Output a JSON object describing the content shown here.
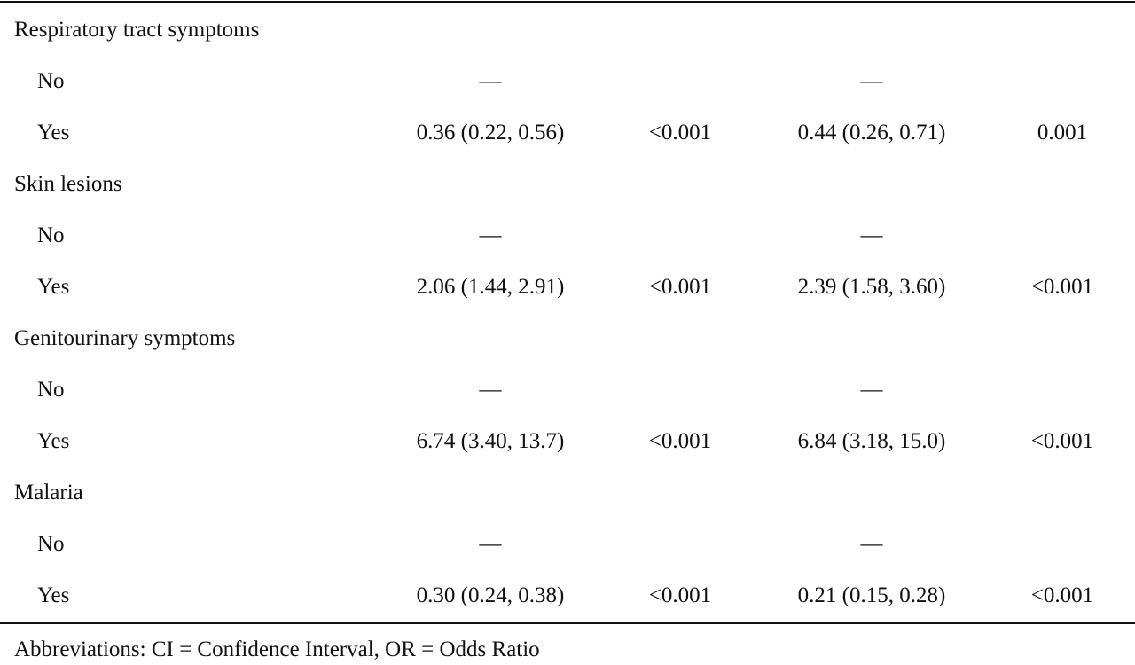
{
  "table": {
    "rows": [
      {
        "type": "group",
        "label": "Respiratory tract symptoms"
      },
      {
        "type": "level",
        "label": "No",
        "or1": "—",
        "p1": "",
        "or2": "—",
        "p2": ""
      },
      {
        "type": "level",
        "label": "Yes",
        "or1": "0.36 (0.22, 0.56)",
        "p1": "<0.001",
        "or2": "0.44 (0.26, 0.71)",
        "p2": "0.001"
      },
      {
        "type": "group",
        "label": "Skin lesions"
      },
      {
        "type": "level",
        "label": "No",
        "or1": "—",
        "p1": "",
        "or2": "—",
        "p2": ""
      },
      {
        "type": "level",
        "label": "Yes",
        "or1": "2.06 (1.44, 2.91)",
        "p1": "<0.001",
        "or2": "2.39 (1.58, 3.60)",
        "p2": "<0.001"
      },
      {
        "type": "group",
        "label": "Genitourinary symptoms"
      },
      {
        "type": "level",
        "label": "No",
        "or1": "—",
        "p1": "",
        "or2": "—",
        "p2": ""
      },
      {
        "type": "level",
        "label": "Yes",
        "or1": "6.74 (3.40, 13.7)",
        "p1": "<0.001",
        "or2": "6.84 (3.18, 15.0)",
        "p2": "<0.001"
      },
      {
        "type": "group",
        "label": "Malaria"
      },
      {
        "type": "level",
        "label": "No",
        "or1": "—",
        "p1": "",
        "or2": "—",
        "p2": ""
      },
      {
        "type": "level",
        "label": "Yes",
        "or1": "0.30 (0.24, 0.38)",
        "p1": "<0.001",
        "or2": "0.21 (0.15, 0.28)",
        "p2": "<0.001"
      }
    ]
  },
  "footnote": "Abbreviations: CI = Confidence Interval, OR = Odds Ratio"
}
